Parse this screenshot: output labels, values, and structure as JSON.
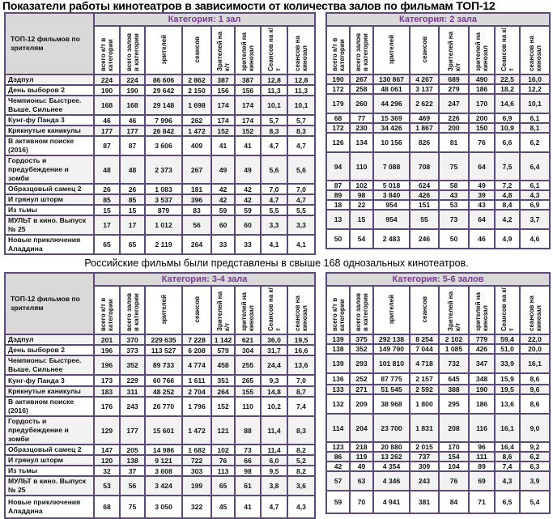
{
  "title": "Показатели работы кинотеатров в зависимости от количества залов по фильмам ТОП-12",
  "subtitle": "Российские фильмы были представлены в свыше 168 однозальных кинотеатров.",
  "name_header": "ТОП-12 фильмов по зрителям",
  "columns": [
    "всего к/т в категории",
    "всего залов в категории",
    "зрителей",
    "сеансов",
    "Зрителей на к/т",
    "зрителей на кинозал",
    "Сеансов на к/т",
    "сеансов на кинозал"
  ],
  "films": [
    "Дэдпул",
    "День выборов 2",
    "Чемпионы: Быстрее. Выше. Сильнее",
    "Кунг-фу Панда 3",
    "Крякнутые каникулы",
    "В активном поиске (2016)",
    "Гордость и предубеждение и зомби",
    "Образцовый самец 2",
    "И грянул шторм",
    "Из тьмы",
    "МУЛЬТ в кино. Выпуск № 25",
    "Новые приключения Аладдина"
  ],
  "categories": [
    {
      "label": "Категория: 1 зал",
      "rows": [
        [
          "224",
          "224",
          "86 606",
          "2 862",
          "387",
          "387",
          "12,8",
          "12,8"
        ],
        [
          "190",
          "190",
          "29 642",
          "2 150",
          "156",
          "156",
          "11,3",
          "11,3"
        ],
        [
          "168",
          "168",
          "29 148",
          "1 698",
          "174",
          "174",
          "10,1",
          "10,1"
        ],
        [
          "46",
          "46",
          "7 996",
          "262",
          "174",
          "174",
          "5,7",
          "5,7"
        ],
        [
          "177",
          "177",
          "26 842",
          "1 472",
          "152",
          "152",
          "8,3",
          "8,3"
        ],
        [
          "87",
          "87",
          "3 606",
          "409",
          "41",
          "41",
          "4,7",
          "4,7"
        ],
        [
          "48",
          "48",
          "2 373",
          "267",
          "49",
          "49",
          "5,6",
          "5,6"
        ],
        [
          "26",
          "26",
          "1 083",
          "181",
          "42",
          "42",
          "7,0",
          "7,0"
        ],
        [
          "85",
          "85",
          "3 537",
          "396",
          "42",
          "42",
          "4,7",
          "4,7"
        ],
        [
          "15",
          "15",
          "879",
          "83",
          "59",
          "59",
          "5,5",
          "5,5"
        ],
        [
          "17",
          "17",
          "1 012",
          "56",
          "60",
          "60",
          "3,3",
          "3,3"
        ],
        [
          "65",
          "65",
          "2 119",
          "264",
          "33",
          "33",
          "4,1",
          "4,1"
        ]
      ]
    },
    {
      "label": "Категория: 2 зала",
      "rows": [
        [
          "190",
          "267",
          "130 867",
          "4 267",
          "689",
          "490",
          "22,5",
          "16,0"
        ],
        [
          "172",
          "258",
          "48 061",
          "3 137",
          "279",
          "186",
          "18,2",
          "12,2"
        ],
        [
          "179",
          "260",
          "44 296",
          "2 622",
          "247",
          "170",
          "14,6",
          "10,1"
        ],
        [
          "68",
          "77",
          "15 369",
          "469",
          "226",
          "200",
          "6,9",
          "6,1"
        ],
        [
          "172",
          "230",
          "34 426",
          "1 867",
          "200",
          "150",
          "10,9",
          "8,1"
        ],
        [
          "126",
          "134",
          "10 156",
          "826",
          "81",
          "76",
          "6,6",
          "6,2"
        ],
        [
          "94",
          "110",
          "7 088",
          "708",
          "75",
          "64",
          "7,5",
          "6,4"
        ],
        [
          "87",
          "102",
          "5 018",
          "624",
          "58",
          "49",
          "7,2",
          "6,1"
        ],
        [
          "89",
          "98",
          "3 840",
          "426",
          "43",
          "39",
          "4,8",
          "4,3"
        ],
        [
          "18",
          "22",
          "954",
          "151",
          "53",
          "43",
          "8,4",
          "6,9"
        ],
        [
          "13",
          "15",
          "954",
          "55",
          "73",
          "64",
          "4,2",
          "3,7"
        ],
        [
          "50",
          "54",
          "2 483",
          "246",
          "50",
          "46",
          "4,9",
          "4,6"
        ]
      ]
    },
    {
      "label": "Категория: 3-4 зала",
      "rows": [
        [
          "201",
          "370",
          "229 635",
          "7 228",
          "1 142",
          "621",
          "36,0",
          "19,5"
        ],
        [
          "196",
          "373",
          "113 527",
          "6 208",
          "579",
          "304",
          "31,7",
          "16,6"
        ],
        [
          "196",
          "352",
          "89 733",
          "4 774",
          "458",
          "255",
          "24,4",
          "13,6"
        ],
        [
          "173",
          "229",
          "60 766",
          "1 611",
          "351",
          "265",
          "9,3",
          "7,0"
        ],
        [
          "183",
          "311",
          "48 252",
          "2 704",
          "264",
          "155",
          "14,8",
          "8,7"
        ],
        [
          "176",
          "243",
          "26 770",
          "1 796",
          "152",
          "110",
          "10,2",
          "7,4"
        ],
        [
          "129",
          "177",
          "15 601",
          "1 472",
          "121",
          "88",
          "11,4",
          "8,3"
        ],
        [
          "147",
          "205",
          "14 986",
          "1 682",
          "102",
          "73",
          "11,4",
          "8,2"
        ],
        [
          "120",
          "138",
          "9 121",
          "722",
          "76",
          "66",
          "6,0",
          "5,2"
        ],
        [
          "32",
          "37",
          "3 608",
          "303",
          "113",
          "98",
          "9,5",
          "8,2"
        ],
        [
          "53",
          "56",
          "3 424",
          "199",
          "65",
          "61",
          "3,8",
          "3,6"
        ],
        [
          "68",
          "75",
          "3 050",
          "322",
          "45",
          "41",
          "4,7",
          "4,3"
        ]
      ]
    },
    {
      "label": "Категория: 5-6 залов",
      "rows": [
        [
          "139",
          "375",
          "292 138",
          "8 254",
          "2 102",
          "779",
          "59,4",
          "22,0"
        ],
        [
          "138",
          "352",
          "149 790",
          "7 044",
          "1 085",
          "426",
          "51,0",
          "20,0"
        ],
        [
          "139",
          "293",
          "101 810",
          "4 718",
          "732",
          "347",
          "33,9",
          "16,1"
        ],
        [
          "136",
          "252",
          "87 775",
          "2 157",
          "645",
          "348",
          "15,9",
          "8,6"
        ],
        [
          "133",
          "271",
          "51 545",
          "2 592",
          "388",
          "190",
          "19,5",
          "9,6"
        ],
        [
          "132",
          "209",
          "38 968",
          "1 800",
          "295",
          "186",
          "13,6",
          "8,6"
        ],
        [
          "114",
          "204",
          "23 700",
          "1 831",
          "208",
          "116",
          "16,1",
          "9,0"
        ],
        [
          "123",
          "218",
          "20 880",
          "2 015",
          "170",
          "96",
          "16,4",
          "9,2"
        ],
        [
          "86",
          "119",
          "13 262",
          "737",
          "154",
          "111",
          "8,6",
          "6,2"
        ],
        [
          "42",
          "49",
          "4 354",
          "309",
          "104",
          "89",
          "7,4",
          "6,3"
        ],
        [
          "57",
          "63",
          "4 346",
          "243",
          "76",
          "69",
          "4,3",
          "3,9"
        ],
        [
          "59",
          "70",
          "4 941",
          "381",
          "84",
          "71",
          "6,5",
          "5,4"
        ]
      ]
    }
  ],
  "colors": {
    "border": "#5e4a78",
    "category_text": "#7a3b93",
    "header_bg": "#d9d9d9",
    "alt_row": "#f2f2f2"
  }
}
